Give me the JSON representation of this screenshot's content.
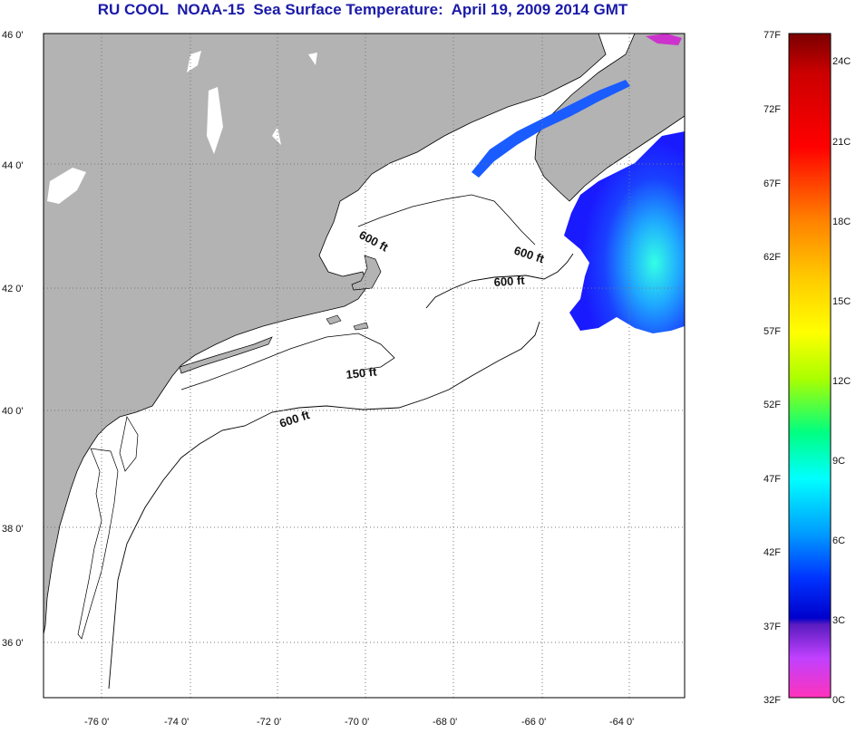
{
  "title": "RU COOL  NOAA-15  Sea Surface Temperature:  April 19, 2009 2014 GMT",
  "map": {
    "lat_labels": [
      "46 0'",
      "44 0'",
      "42 0'",
      "40 0'",
      "38 0'",
      "36 0'"
    ],
    "lon_labels": [
      "-76 0'",
      "-74 0'",
      "-72 0'",
      "-70 0'",
      "-68 0'",
      "-66 0'",
      "-64 0'"
    ],
    "contour_labels": [
      "600 ft",
      "600 ft",
      "600 ft",
      "150 ft",
      "600 ft"
    ],
    "colors": {
      "land": "#b3b3b3",
      "ocean": "#ffffff",
      "grid": "#777777"
    }
  },
  "colorbar": {
    "fahrenheit_labels": [
      "77F",
      "72F",
      "67F",
      "62F",
      "57F",
      "52F",
      "47F",
      "42F",
      "37F",
      "32F"
    ],
    "celsius_labels": [
      "24C",
      "21C",
      "18C",
      "15C",
      "12C",
      "9C",
      "6C",
      "3C",
      "0C"
    ],
    "colors_top_to_bottom": [
      "#8b0000",
      "#ff0000",
      "#ff8c00",
      "#ffff00",
      "#00ff66",
      "#00ffff",
      "#0050ff",
      "#0000dd",
      "#9b30ff",
      "#ff33cc"
    ]
  }
}
